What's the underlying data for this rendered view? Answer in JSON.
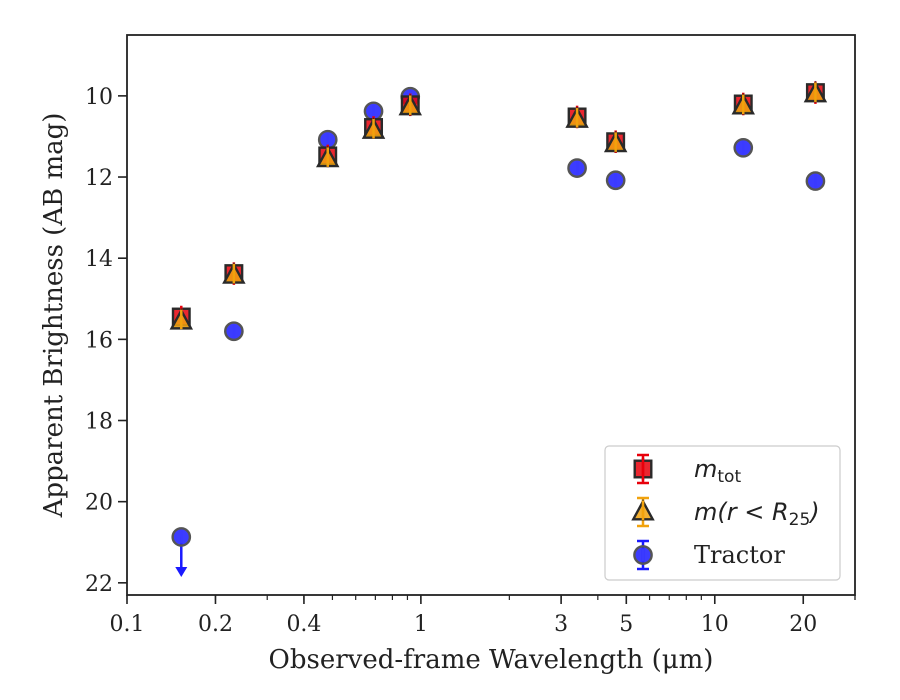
{
  "chart_data": {
    "type": "scatter",
    "xlabel": "Observed-frame Wavelength (μm)",
    "ylabel": "Apparent Brightness (AB mag)",
    "x_scale": "log",
    "xlim": [
      0.1,
      30
    ],
    "ylim": [
      22.3,
      8.5
    ],
    "y_inverted": true,
    "x_ticks": [
      0.1,
      0.2,
      0.4,
      1,
      3,
      5,
      10,
      20
    ],
    "x_tick_labels": [
      "0.1",
      "0.2",
      "0.4",
      "1",
      "3",
      "5",
      "10",
      "20"
    ],
    "y_ticks": [
      10,
      12,
      14,
      16,
      18,
      20,
      22
    ],
    "y_tick_labels": [
      "10",
      "12",
      "14",
      "16",
      "18",
      "20",
      "22"
    ],
    "grid": false,
    "legend_position": "lower-right",
    "series": [
      {
        "name": "m_tot",
        "legend_main": "m",
        "legend_sub": "tot",
        "marker": "square",
        "color": "#e8000b",
        "error_color": "#e8000b",
        "x": [
          0.153,
          0.231,
          0.482,
          0.69,
          0.92,
          3.4,
          4.6,
          12.5,
          22.0
        ],
        "y": [
          15.45,
          14.38,
          11.48,
          10.78,
          10.22,
          10.52,
          11.13,
          10.2,
          9.92
        ]
      },
      {
        "name": "m(r < R_25)",
        "legend_main": "m(r < R",
        "legend_sub": "25",
        "legend_end": ")",
        "marker": "triangle",
        "color": "#f1a20d",
        "error_color": "#f1a20d",
        "x": [
          0.153,
          0.231,
          0.482,
          0.69,
          0.92,
          3.4,
          4.6,
          12.5,
          22.0
        ],
        "y": [
          15.55,
          14.42,
          11.55,
          10.85,
          10.27,
          10.58,
          11.18,
          10.25,
          9.95
        ]
      },
      {
        "name": "Tractor",
        "legend_main": "Tractor",
        "marker": "circle",
        "color": "#1a1aff",
        "error_color": "#1a1aff",
        "x": [
          0.153,
          0.231,
          0.482,
          0.69,
          0.92,
          3.4,
          4.6,
          12.5,
          22.0
        ],
        "y": [
          20.87,
          15.8,
          11.08,
          10.38,
          10.02,
          11.78,
          12.08,
          11.28,
          12.1
        ],
        "upper_limit_indices": [
          0
        ]
      }
    ]
  }
}
